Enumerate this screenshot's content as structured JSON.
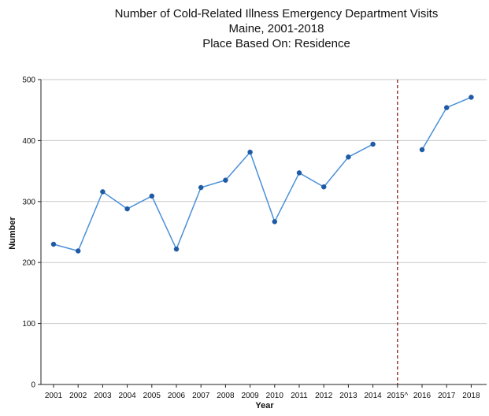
{
  "chart_data": {
    "type": "line",
    "title": [
      "Number of Cold-Related Illness Emergency Department Visits",
      "Maine, 2001-2018",
      "Place Based On: Residence"
    ],
    "xlabel": "Year",
    "ylabel": "Number",
    "categories": [
      "2001",
      "2002",
      "2003",
      "2004",
      "2005",
      "2006",
      "2007",
      "2008",
      "2009",
      "2010",
      "2011",
      "2012",
      "2013",
      "2014",
      "2015^",
      "2016",
      "2017",
      "2018"
    ],
    "series": [
      {
        "values": [
          230,
          219,
          316,
          288,
          309,
          222,
          323,
          335,
          381,
          267,
          347,
          324,
          373,
          394,
          null,
          385,
          454,
          471
        ],
        "color": "#4a90d9",
        "marker_color": "#1f5aa6"
      }
    ],
    "ylim": [
      0,
      500
    ],
    "yticks": [
      0,
      100,
      200,
      300,
      400,
      500
    ],
    "grid": true,
    "reference_line": {
      "at_category": "2015^",
      "color": "#8b1a1a",
      "style": "dashed"
    }
  }
}
